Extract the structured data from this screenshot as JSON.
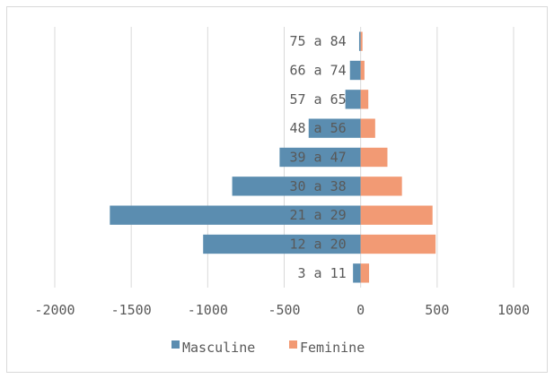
{
  "chart_data": {
    "type": "bar",
    "orientation": "horizontal",
    "stacked": true,
    "categories": [
      "3 a 11",
      "12 a 20",
      "21 a 29",
      "30 a 38",
      "39 a 47",
      "48 a 56",
      "57 a 65",
      "66 a 74",
      "75 a 84"
    ],
    "series": [
      {
        "name": "Masculine",
        "color": "#5b8db0",
        "values": [
          -50,
          -1030,
          -1640,
          -840,
          -530,
          -340,
          -100,
          -70,
          -10
        ]
      },
      {
        "name": "Feminine",
        "color": "#f29a74",
        "values": [
          55,
          490,
          470,
          270,
          175,
          95,
          50,
          25,
          12
        ]
      }
    ],
    "xlim": [
      -2000,
      1000
    ],
    "xticks": [
      -2000,
      -1500,
      -1000,
      -500,
      0,
      500,
      1000
    ],
    "xtick_labels": [
      "-2000",
      "-1500",
      "-1000",
      "-500",
      "0",
      "500",
      "1000"
    ],
    "grid": true,
    "legend_position": "bottom",
    "title": "",
    "xlabel": "",
    "ylabel": ""
  }
}
